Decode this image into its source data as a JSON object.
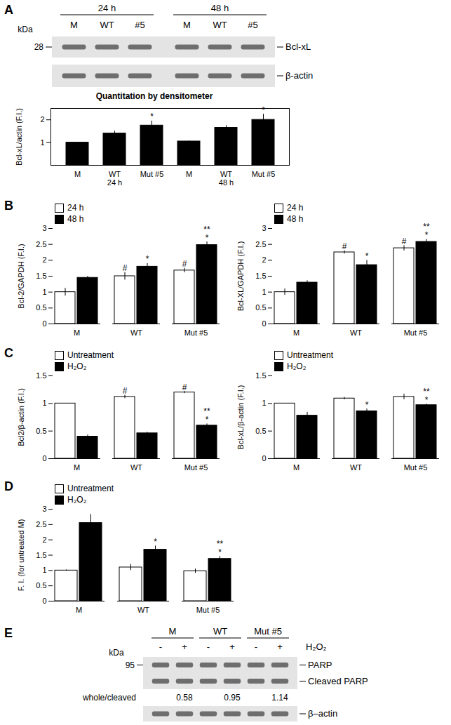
{
  "blots": [
    {
      "panel_label": "A",
      "marker_unit": "kDa",
      "markers": [
        28
      ],
      "lane_groups": [
        {
          "label": "24 h",
          "lanes": [
            "M",
            "WT",
            "#5"
          ]
        },
        {
          "label": "48 h",
          "lanes": [
            "M",
            "WT",
            "#5"
          ]
        }
      ],
      "bands": [
        "Bcl-xL",
        "β-actin"
      ]
    },
    {
      "panel_label": "E",
      "marker_unit": "kDa",
      "markers": [
        95
      ],
      "lane_groups": [
        {
          "label": "M",
          "lanes": [
            "-",
            "+"
          ]
        },
        {
          "label": "WT",
          "lanes": [
            "-",
            "+"
          ]
        },
        {
          "label": "Mut #5",
          "lanes": [
            "-",
            "+"
          ]
        }
      ],
      "lane_row_label": "H₂O₂",
      "bands": [
        "PARP",
        "Cleaved PARP",
        "β–actin"
      ],
      "ratio_label": "whole/cleaved",
      "ratios": [
        null,
        0.58,
        null,
        0.95,
        null,
        1.14
      ]
    }
  ],
  "chart_data": [
    {
      "type": "bar",
      "title": "Quantitation by densitometer",
      "ylabel": "Bcl-xL/actin (F.I.)",
      "categories": [
        "M",
        "WT",
        "Mut #5",
        "M",
        "WT",
        "Mut #5"
      ],
      "group_labels": [
        "24 h",
        "48 h"
      ],
      "values": [
        1.0,
        1.4,
        1.75,
        1.05,
        1.65,
        2.0
      ],
      "errors": [
        0.0,
        0.1,
        0.2,
        0.03,
        0.1,
        0.25
      ],
      "annotations": [
        null,
        null,
        [
          "*"
        ],
        null,
        null,
        [
          "*"
        ]
      ],
      "color": "#000000",
      "ylim": [
        0,
        2.5
      ],
      "yticks": [
        1,
        2
      ]
    },
    {
      "type": "bar",
      "panel_label": "B",
      "ylabel": "Bcl-2/GAPDH (F.I.)",
      "categories": [
        "M",
        "WT",
        "Mut #5"
      ],
      "series": [
        {
          "name": "24 h",
          "color": "#ffffff",
          "values": [
            1.0,
            1.5,
            1.68
          ],
          "errors": [
            0.12,
            0.12,
            0.07
          ],
          "annotations": [
            null,
            [
              "#"
            ],
            [
              "#"
            ]
          ]
        },
        {
          "name": "48 h",
          "color": "#000000",
          "values": [
            1.45,
            1.8,
            2.48
          ],
          "errors": [
            0.05,
            0.1,
            0.1
          ],
          "annotations": [
            null,
            [
              "*"
            ],
            [
              "**",
              "*"
            ]
          ]
        }
      ],
      "ylim": [
        0,
        3
      ],
      "yticks": [
        0,
        0.5,
        1,
        1.5,
        2,
        2.5,
        3
      ],
      "legend": "top-left"
    },
    {
      "type": "bar",
      "ylabel": "Bcl-XL/GAPDH (F.I.)",
      "categories": [
        "M",
        "WT",
        "Mut #5"
      ],
      "series": [
        {
          "name": "24 h",
          "color": "#ffffff",
          "values": [
            1.0,
            2.25,
            2.38
          ],
          "errors": [
            0.1,
            0.05,
            0.08
          ],
          "annotations": [
            null,
            [
              "#"
            ],
            [
              "#"
            ]
          ]
        },
        {
          "name": "48 h",
          "color": "#000000",
          "values": [
            1.3,
            1.85,
            2.58
          ],
          "errors": [
            0.06,
            0.15,
            0.08
          ],
          "annotations": [
            null,
            [
              "*"
            ],
            [
              "**",
              "*"
            ]
          ]
        }
      ],
      "ylim": [
        0,
        3
      ],
      "yticks": [
        0,
        0.5,
        1,
        1.5,
        2,
        2.5,
        3
      ],
      "legend": "top-left"
    },
    {
      "type": "bar",
      "panel_label": "C",
      "ylabel": "Bcl2/β-actin (F.I.)",
      "categories": [
        "M",
        "WT",
        "Mut #5"
      ],
      "series": [
        {
          "name": "Untreatment",
          "color": "#ffffff",
          "values": [
            1.0,
            1.12,
            1.2
          ],
          "errors": [
            0,
            0.03,
            0.02
          ],
          "annotations": [
            null,
            [
              "#"
            ],
            [
              "#"
            ]
          ]
        },
        {
          "name": "H₂O₂",
          "color": "#000000",
          "values": [
            0.4,
            0.46,
            0.6
          ],
          "errors": [
            0.03,
            0.02,
            0.03
          ],
          "annotations": [
            null,
            null,
            [
              "**",
              "*"
            ]
          ]
        }
      ],
      "ylim": [
        0,
        1.5
      ],
      "yticks": [
        0,
        0.5,
        1,
        1.5
      ],
      "legend": "top-left"
    },
    {
      "type": "bar",
      "ylabel": "Bcl-xL/β-actin (F.I.)",
      "categories": [
        "M",
        "WT",
        "Mut #5"
      ],
      "series": [
        {
          "name": "Untreatment",
          "color": "#ffffff",
          "values": [
            1.0,
            1.09,
            1.12
          ],
          "errors": [
            0,
            0.02,
            0.05
          ],
          "annotations": [
            null,
            null,
            null
          ]
        },
        {
          "name": "H₂O₂",
          "color": "#000000",
          "values": [
            0.78,
            0.86,
            0.97
          ],
          "errors": [
            0.06,
            0.04,
            0.02
          ],
          "annotations": [
            null,
            [
              "*"
            ],
            [
              "**",
              "*"
            ]
          ]
        }
      ],
      "ylim": [
        0,
        1.5
      ],
      "yticks": [
        0,
        0.5,
        1,
        1.5
      ],
      "legend": "top-left"
    },
    {
      "type": "bar",
      "panel_label": "D",
      "ylabel": "F. I. (for untreated M)",
      "categories": [
        "M",
        "WT",
        "Mut #5"
      ],
      "series": [
        {
          "name": "Untreatment",
          "color": "#ffffff",
          "values": [
            1.0,
            1.1,
            0.98
          ],
          "errors": [
            0.02,
            0.1,
            0.07
          ],
          "annotations": [
            null,
            null,
            null
          ]
        },
        {
          "name": "H₂O₂",
          "color": "#000000",
          "values": [
            2.55,
            1.68,
            1.38
          ],
          "errors": [
            0.28,
            0.12,
            0.08
          ],
          "annotations": [
            null,
            [
              "*"
            ],
            [
              "**",
              "*"
            ]
          ]
        }
      ],
      "ylim": [
        0,
        3
      ],
      "yticks": [
        0,
        0.5,
        1,
        1.5,
        2,
        2.5,
        3
      ],
      "legend": "top-left"
    }
  ]
}
